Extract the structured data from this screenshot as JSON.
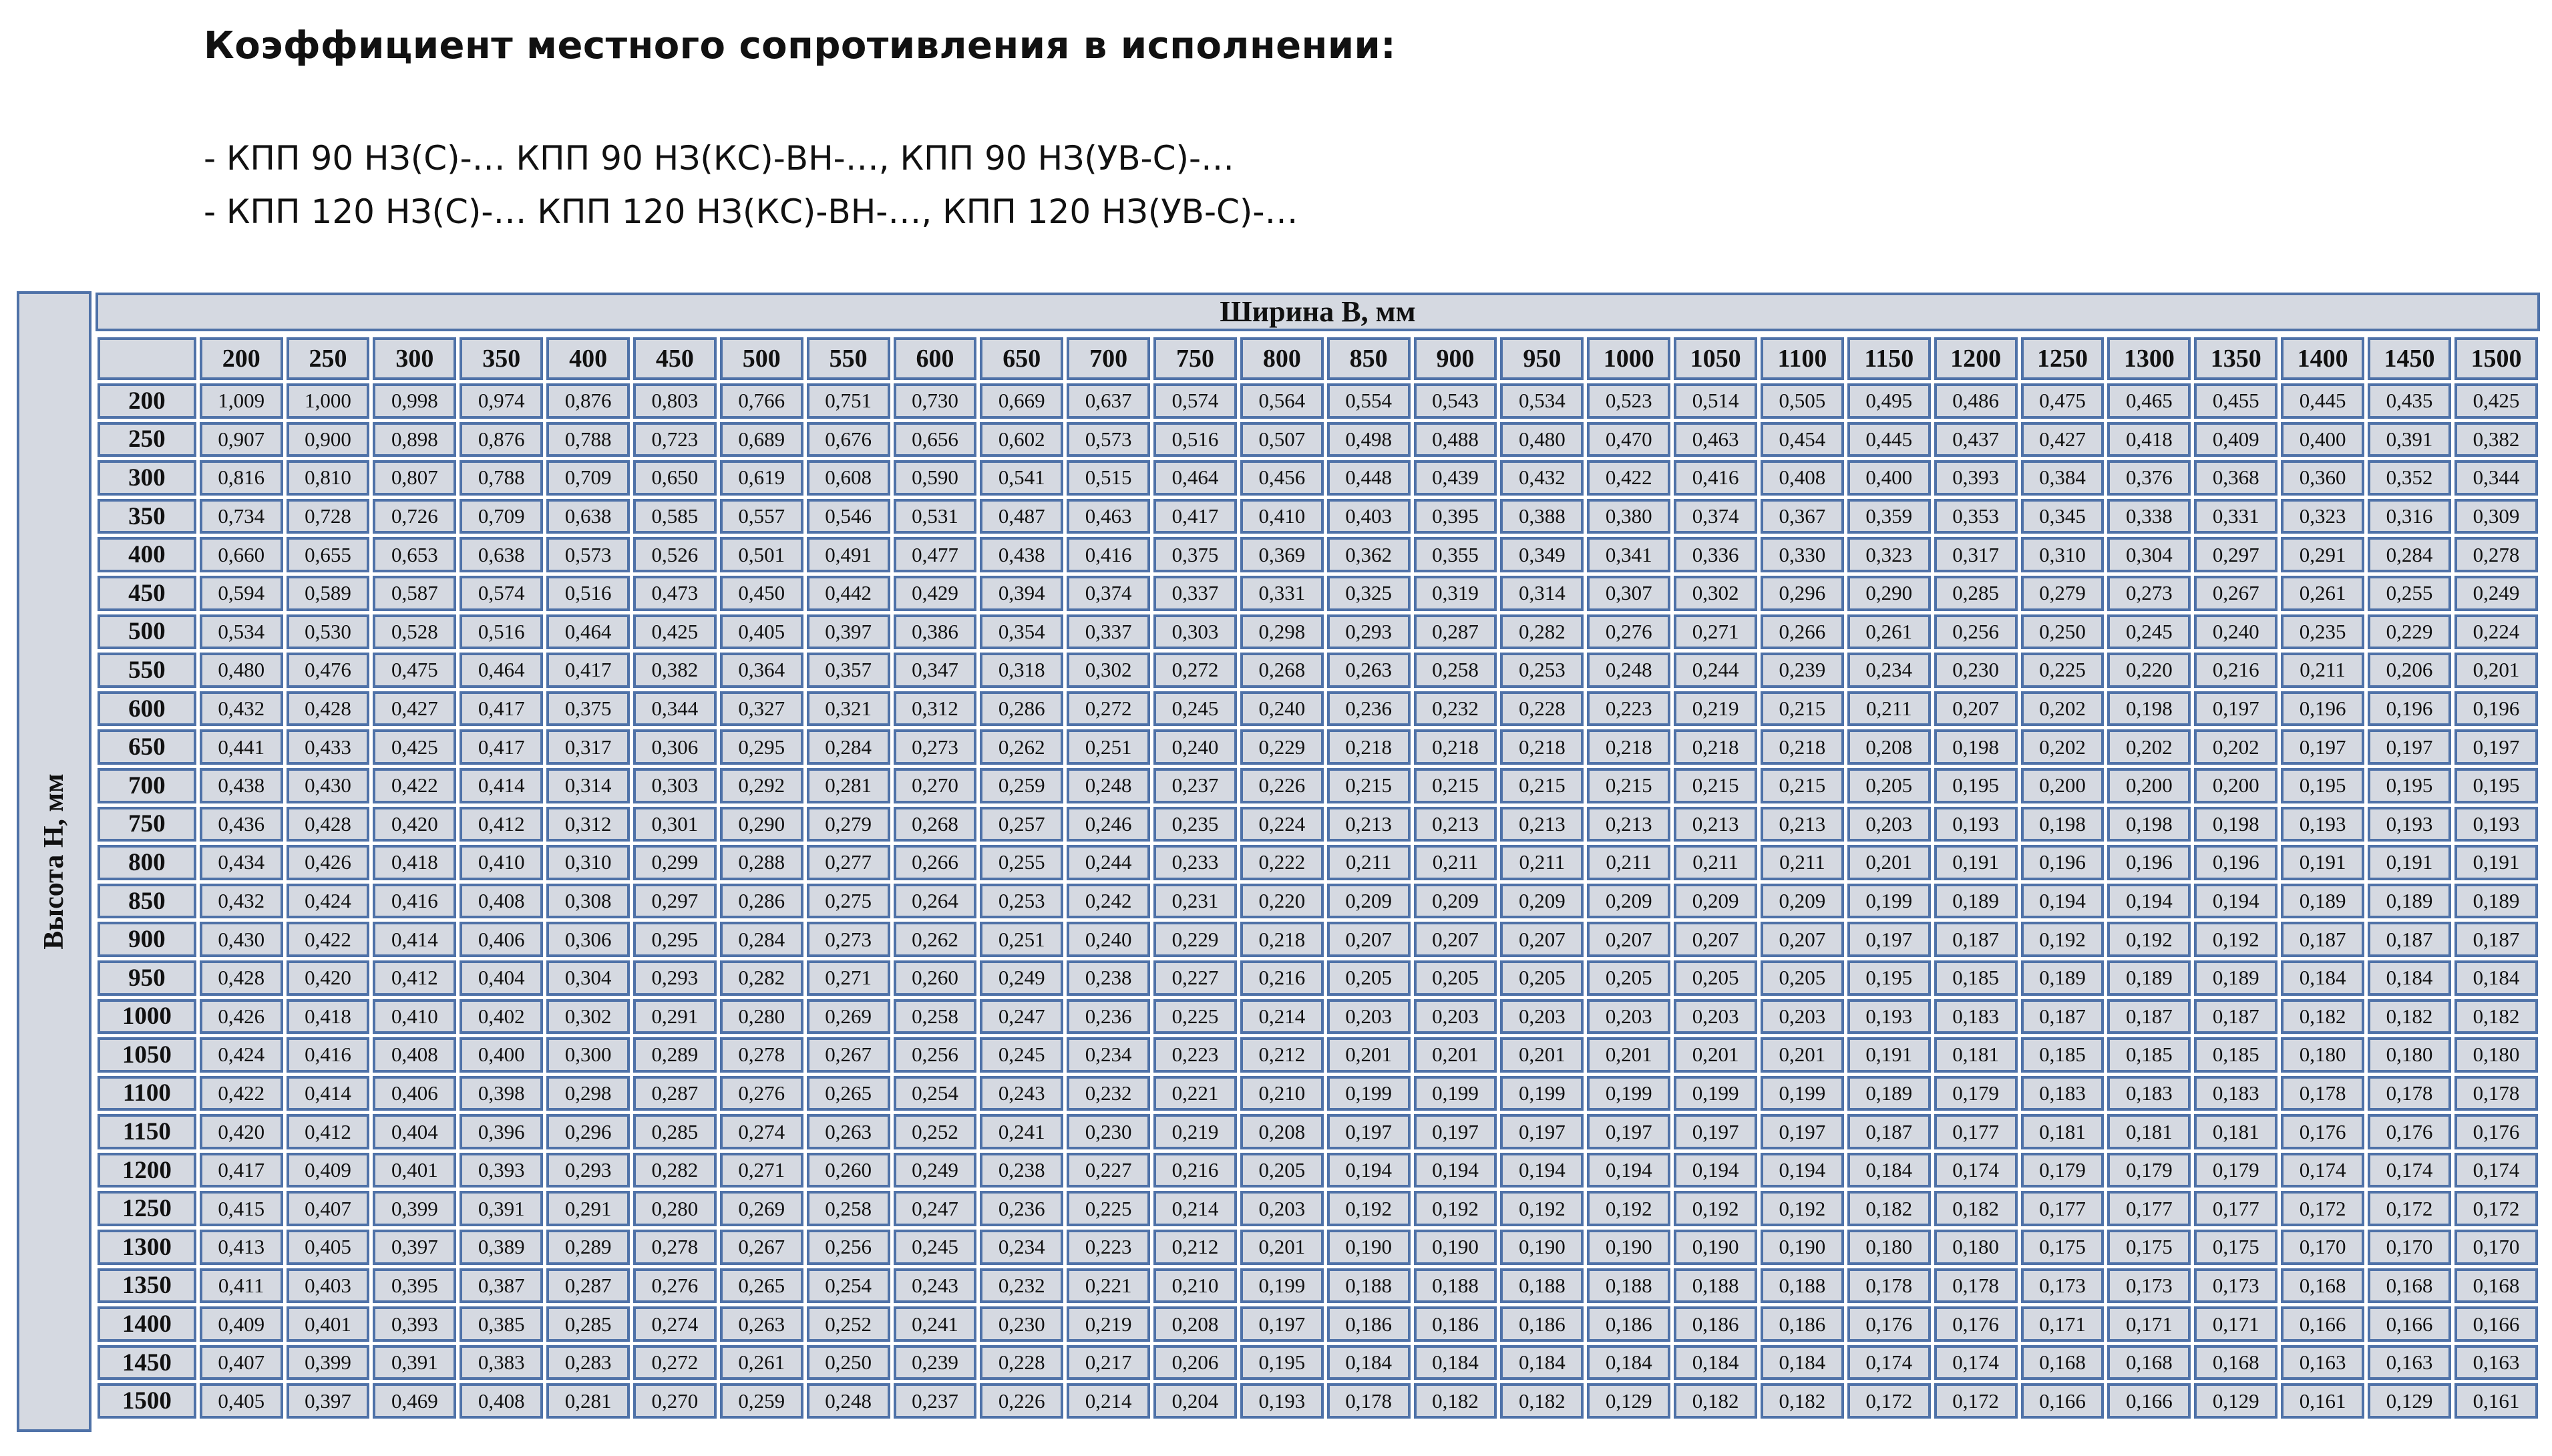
{
  "title": "Коэффициент местного сопротивления в исполнении:",
  "lines": [
    "- КПП 90 НЗ(С)-… КПП 90 НЗ(КС)-ВН-…, КПП 90 НЗ(УВ-С)-…",
    "- КПП 120 НЗ(С)-… КПП 120 НЗ(КС)-ВН-…, КПП 120 НЗ(УВ-С)-…"
  ],
  "table": {
    "width_caption": "Ширина B, мм",
    "height_caption": "Высота H, мм",
    "colors": {
      "cell_bg": "#d5d9e1",
      "border": "#4f72a8"
    },
    "columns": [
      "200",
      "250",
      "300",
      "350",
      "400",
      "450",
      "500",
      "550",
      "600",
      "650",
      "700",
      "750",
      "800",
      "850",
      "900",
      "950",
      "1000",
      "1050",
      "1100",
      "1150",
      "1200",
      "1250",
      "1300",
      "1350",
      "1400",
      "1450",
      "1500"
    ],
    "rows": [
      {
        "h": "200",
        "values": [
          "1,009",
          "1,000",
          "0,998",
          "0,974",
          "0,876",
          "0,803",
          "0,766",
          "0,751",
          "0,730",
          "0,669",
          "0,637",
          "0,574",
          "0,564",
          "0,554",
          "0,543",
          "0,534",
          "0,523",
          "0,514",
          "0,505",
          "0,495",
          "0,486",
          "0,475",
          "0,465",
          "0,455",
          "0,445",
          "0,435",
          "0,425"
        ]
      },
      {
        "h": "250",
        "values": [
          "0,907",
          "0,900",
          "0,898",
          "0,876",
          "0,788",
          "0,723",
          "0,689",
          "0,676",
          "0,656",
          "0,602",
          "0,573",
          "0,516",
          "0,507",
          "0,498",
          "0,488",
          "0,480",
          "0,470",
          "0,463",
          "0,454",
          "0,445",
          "0,437",
          "0,427",
          "0,418",
          "0,409",
          "0,400",
          "0,391",
          "0,382"
        ]
      },
      {
        "h": "300",
        "values": [
          "0,816",
          "0,810",
          "0,807",
          "0,788",
          "0,709",
          "0,650",
          "0,619",
          "0,608",
          "0,590",
          "0,541",
          "0,515",
          "0,464",
          "0,456",
          "0,448",
          "0,439",
          "0,432",
          "0,422",
          "0,416",
          "0,408",
          "0,400",
          "0,393",
          "0,384",
          "0,376",
          "0,368",
          "0,360",
          "0,352",
          "0,344"
        ]
      },
      {
        "h": "350",
        "values": [
          "0,734",
          "0,728",
          "0,726",
          "0,709",
          "0,638",
          "0,585",
          "0,557",
          "0,546",
          "0,531",
          "0,487",
          "0,463",
          "0,417",
          "0,410",
          "0,403",
          "0,395",
          "0,388",
          "0,380",
          "0,374",
          "0,367",
          "0,359",
          "0,353",
          "0,345",
          "0,338",
          "0,331",
          "0,323",
          "0,316",
          "0,309"
        ]
      },
      {
        "h": "400",
        "values": [
          "0,660",
          "0,655",
          "0,653",
          "0,638",
          "0,573",
          "0,526",
          "0,501",
          "0,491",
          "0,477",
          "0,438",
          "0,416",
          "0,375",
          "0,369",
          "0,362",
          "0,355",
          "0,349",
          "0,341",
          "0,336",
          "0,330",
          "0,323",
          "0,317",
          "0,310",
          "0,304",
          "0,297",
          "0,291",
          "0,284",
          "0,278"
        ]
      },
      {
        "h": "450",
        "values": [
          "0,594",
          "0,589",
          "0,587",
          "0,574",
          "0,516",
          "0,473",
          "0,450",
          "0,442",
          "0,429",
          "0,394",
          "0,374",
          "0,337",
          "0,331",
          "0,325",
          "0,319",
          "0,314",
          "0,307",
          "0,302",
          "0,296",
          "0,290",
          "0,285",
          "0,279",
          "0,273",
          "0,267",
          "0,261",
          "0,255",
          "0,249"
        ]
      },
      {
        "h": "500",
        "values": [
          "0,534",
          "0,530",
          "0,528",
          "0,516",
          "0,464",
          "0,425",
          "0,405",
          "0,397",
          "0,386",
          "0,354",
          "0,337",
          "0,303",
          "0,298",
          "0,293",
          "0,287",
          "0,282",
          "0,276",
          "0,271",
          "0,266",
          "0,261",
          "0,256",
          "0,250",
          "0,245",
          "0,240",
          "0,235",
          "0,229",
          "0,224"
        ]
      },
      {
        "h": "550",
        "values": [
          "0,480",
          "0,476",
          "0,475",
          "0,464",
          "0,417",
          "0,382",
          "0,364",
          "0,357",
          "0,347",
          "0,318",
          "0,302",
          "0,272",
          "0,268",
          "0,263",
          "0,258",
          "0,253",
          "0,248",
          "0,244",
          "0,239",
          "0,234",
          "0,230",
          "0,225",
          "0,220",
          "0,216",
          "0,211",
          "0,206",
          "0,201"
        ]
      },
      {
        "h": "600",
        "values": [
          "0,432",
          "0,428",
          "0,427",
          "0,417",
          "0,375",
          "0,344",
          "0,327",
          "0,321",
          "0,312",
          "0,286",
          "0,272",
          "0,245",
          "0,240",
          "0,236",
          "0,232",
          "0,228",
          "0,223",
          "0,219",
          "0,215",
          "0,211",
          "0,207",
          "0,202",
          "0,198",
          "0,197",
          "0,196",
          "0,196",
          "0,196"
        ]
      },
      {
        "h": "650",
        "values": [
          "0,441",
          "0,433",
          "0,425",
          "0,417",
          "0,317",
          "0,306",
          "0,295",
          "0,284",
          "0,273",
          "0,262",
          "0,251",
          "0,240",
          "0,229",
          "0,218",
          "0,218",
          "0,218",
          "0,218",
          "0,218",
          "0,218",
          "0,208",
          "0,198",
          "0,202",
          "0,202",
          "0,202",
          "0,197",
          "0,197",
          "0,197"
        ]
      },
      {
        "h": "700",
        "values": [
          "0,438",
          "0,430",
          "0,422",
          "0,414",
          "0,314",
          "0,303",
          "0,292",
          "0,281",
          "0,270",
          "0,259",
          "0,248",
          "0,237",
          "0,226",
          "0,215",
          "0,215",
          "0,215",
          "0,215",
          "0,215",
          "0,215",
          "0,205",
          "0,195",
          "0,200",
          "0,200",
          "0,200",
          "0,195",
          "0,195",
          "0,195"
        ]
      },
      {
        "h": "750",
        "values": [
          "0,436",
          "0,428",
          "0,420",
          "0,412",
          "0,312",
          "0,301",
          "0,290",
          "0,279",
          "0,268",
          "0,257",
          "0,246",
          "0,235",
          "0,224",
          "0,213",
          "0,213",
          "0,213",
          "0,213",
          "0,213",
          "0,213",
          "0,203",
          "0,193",
          "0,198",
          "0,198",
          "0,198",
          "0,193",
          "0,193",
          "0,193"
        ]
      },
      {
        "h": "800",
        "values": [
          "0,434",
          "0,426",
          "0,418",
          "0,410",
          "0,310",
          "0,299",
          "0,288",
          "0,277",
          "0,266",
          "0,255",
          "0,244",
          "0,233",
          "0,222",
          "0,211",
          "0,211",
          "0,211",
          "0,211",
          "0,211",
          "0,211",
          "0,201",
          "0,191",
          "0,196",
          "0,196",
          "0,196",
          "0,191",
          "0,191",
          "0,191"
        ]
      },
      {
        "h": "850",
        "values": [
          "0,432",
          "0,424",
          "0,416",
          "0,408",
          "0,308",
          "0,297",
          "0,286",
          "0,275",
          "0,264",
          "0,253",
          "0,242",
          "0,231",
          "0,220",
          "0,209",
          "0,209",
          "0,209",
          "0,209",
          "0,209",
          "0,209",
          "0,199",
          "0,189",
          "0,194",
          "0,194",
          "0,194",
          "0,189",
          "0,189",
          "0,189"
        ]
      },
      {
        "h": "900",
        "values": [
          "0,430",
          "0,422",
          "0,414",
          "0,406",
          "0,306",
          "0,295",
          "0,284",
          "0,273",
          "0,262",
          "0,251",
          "0,240",
          "0,229",
          "0,218",
          "0,207",
          "0,207",
          "0,207",
          "0,207",
          "0,207",
          "0,207",
          "0,197",
          "0,187",
          "0,192",
          "0,192",
          "0,192",
          "0,187",
          "0,187",
          "0,187"
        ]
      },
      {
        "h": "950",
        "values": [
          "0,428",
          "0,420",
          "0,412",
          "0,404",
          "0,304",
          "0,293",
          "0,282",
          "0,271",
          "0,260",
          "0,249",
          "0,238",
          "0,227",
          "0,216",
          "0,205",
          "0,205",
          "0,205",
          "0,205",
          "0,205",
          "0,205",
          "0,195",
          "0,185",
          "0,189",
          "0,189",
          "0,189",
          "0,184",
          "0,184",
          "0,184"
        ]
      },
      {
        "h": "1000",
        "values": [
          "0,426",
          "0,418",
          "0,410",
          "0,402",
          "0,302",
          "0,291",
          "0,280",
          "0,269",
          "0,258",
          "0,247",
          "0,236",
          "0,225",
          "0,214",
          "0,203",
          "0,203",
          "0,203",
          "0,203",
          "0,203",
          "0,203",
          "0,193",
          "0,183",
          "0,187",
          "0,187",
          "0,187",
          "0,182",
          "0,182",
          "0,182"
        ]
      },
      {
        "h": "1050",
        "values": [
          "0,424",
          "0,416",
          "0,408",
          "0,400",
          "0,300",
          "0,289",
          "0,278",
          "0,267",
          "0,256",
          "0,245",
          "0,234",
          "0,223",
          "0,212",
          "0,201",
          "0,201",
          "0,201",
          "0,201",
          "0,201",
          "0,201",
          "0,191",
          "0,181",
          "0,185",
          "0,185",
          "0,185",
          "0,180",
          "0,180",
          "0,180"
        ]
      },
      {
        "h": "1100",
        "values": [
          "0,422",
          "0,414",
          "0,406",
          "0,398",
          "0,298",
          "0,287",
          "0,276",
          "0,265",
          "0,254",
          "0,243",
          "0,232",
          "0,221",
          "0,210",
          "0,199",
          "0,199",
          "0,199",
          "0,199",
          "0,199",
          "0,199",
          "0,189",
          "0,179",
          "0,183",
          "0,183",
          "0,183",
          "0,178",
          "0,178",
          "0,178"
        ]
      },
      {
        "h": "1150",
        "values": [
          "0,420",
          "0,412",
          "0,404",
          "0,396",
          "0,296",
          "0,285",
          "0,274",
          "0,263",
          "0,252",
          "0,241",
          "0,230",
          "0,219",
          "0,208",
          "0,197",
          "0,197",
          "0,197",
          "0,197",
          "0,197",
          "0,197",
          "0,187",
          "0,177",
          "0,181",
          "0,181",
          "0,181",
          "0,176",
          "0,176",
          "0,176"
        ]
      },
      {
        "h": "1200",
        "values": [
          "0,417",
          "0,409",
          "0,401",
          "0,393",
          "0,293",
          "0,282",
          "0,271",
          "0,260",
          "0,249",
          "0,238",
          "0,227",
          "0,216",
          "0,205",
          "0,194",
          "0,194",
          "0,194",
          "0,194",
          "0,194",
          "0,194",
          "0,184",
          "0,174",
          "0,179",
          "0,179",
          "0,179",
          "0,174",
          "0,174",
          "0,174"
        ]
      },
      {
        "h": "1250",
        "values": [
          "0,415",
          "0,407",
          "0,399",
          "0,391",
          "0,291",
          "0,280",
          "0,269",
          "0,258",
          "0,247",
          "0,236",
          "0,225",
          "0,214",
          "0,203",
          "0,192",
          "0,192",
          "0,192",
          "0,192",
          "0,192",
          "0,192",
          "0,182",
          "0,182",
          "0,177",
          "0,177",
          "0,177",
          "0,172",
          "0,172",
          "0,172"
        ]
      },
      {
        "h": "1300",
        "values": [
          "0,413",
          "0,405",
          "0,397",
          "0,389",
          "0,289",
          "0,278",
          "0,267",
          "0,256",
          "0,245",
          "0,234",
          "0,223",
          "0,212",
          "0,201",
          "0,190",
          "0,190",
          "0,190",
          "0,190",
          "0,190",
          "0,190",
          "0,180",
          "0,180",
          "0,175",
          "0,175",
          "0,175",
          "0,170",
          "0,170",
          "0,170"
        ]
      },
      {
        "h": "1350",
        "values": [
          "0,411",
          "0,403",
          "0,395",
          "0,387",
          "0,287",
          "0,276",
          "0,265",
          "0,254",
          "0,243",
          "0,232",
          "0,221",
          "0,210",
          "0,199",
          "0,188",
          "0,188",
          "0,188",
          "0,188",
          "0,188",
          "0,188",
          "0,178",
          "0,178",
          "0,173",
          "0,173",
          "0,173",
          "0,168",
          "0,168",
          "0,168"
        ]
      },
      {
        "h": "1400",
        "values": [
          "0,409",
          "0,401",
          "0,393",
          "0,385",
          "0,285",
          "0,274",
          "0,263",
          "0,252",
          "0,241",
          "0,230",
          "0,219",
          "0,208",
          "0,197",
          "0,186",
          "0,186",
          "0,186",
          "0,186",
          "0,186",
          "0,186",
          "0,176",
          "0,176",
          "0,171",
          "0,171",
          "0,171",
          "0,166",
          "0,166",
          "0,166"
        ]
      },
      {
        "h": "1450",
        "values": [
          "0,407",
          "0,399",
          "0,391",
          "0,383",
          "0,283",
          "0,272",
          "0,261",
          "0,250",
          "0,239",
          "0,228",
          "0,217",
          "0,206",
          "0,195",
          "0,184",
          "0,184",
          "0,184",
          "0,184",
          "0,184",
          "0,184",
          "0,174",
          "0,174",
          "0,168",
          "0,168",
          "0,168",
          "0,163",
          "0,163",
          "0,163"
        ]
      },
      {
        "h": "1500",
        "values": [
          "0,405",
          "0,397",
          "0,469",
          "0,408",
          "0,281",
          "0,270",
          "0,259",
          "0,248",
          "0,237",
          "0,226",
          "0,214",
          "0,204",
          "0,193",
          "0,178",
          "0,182",
          "0,182",
          "0,129",
          "0,182",
          "0,182",
          "0,172",
          "0,172",
          "0,166",
          "0,166",
          "0,129",
          "0,161",
          "0,129",
          "0,161"
        ]
      }
    ]
  }
}
